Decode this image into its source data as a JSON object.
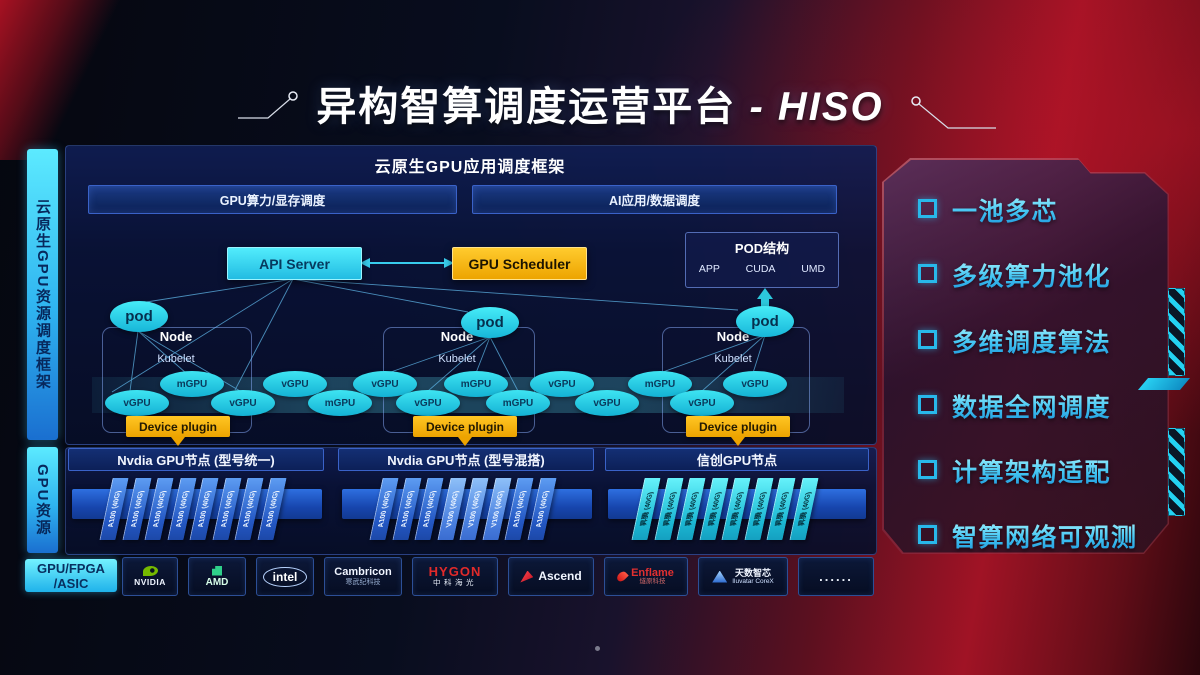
{
  "title": {
    "main": "异构智算调度运营平台",
    "suffix": "- HISO"
  },
  "sidebar": {
    "framework_label": "云原生GPU资源调度框架",
    "gpu_label": "GPU资源"
  },
  "framework": {
    "header": "云原生GPU应用调度框架",
    "bar_left": "GPU算力/显存调度",
    "bar_right": "AI应用/数据调度",
    "api_server": "API Server",
    "gpu_scheduler": "GPU Scheduler",
    "pod_box": {
      "title": "POD结构",
      "items": [
        "APP",
        "CUDA",
        "UMD"
      ]
    },
    "node_label": "Node",
    "kubelet_label": "Kubelet",
    "pod_label": "pod",
    "device_plugin_label": "Device plugin",
    "gpu_units_top": [
      "mGPU",
      "vGPU",
      "vGPU",
      "mGPU",
      "vGPU",
      "mGPU",
      "vGPU"
    ],
    "gpu_units_bottom": [
      "vGPU",
      "vGPU",
      "mGPU",
      "vGPU",
      "mGPU",
      "vGPU",
      "vGPU"
    ]
  },
  "gpu_resources": {
    "groups": [
      {
        "label": "Nvdia GPU节点 (型号统一)",
        "card_style": "blue",
        "cards": [
          "A100 (40G)",
          "A100 (40G)",
          "A100 (40G)",
          "A100 (40G)",
          "A100 (40G)",
          "A100 (40G)",
          "A100 (40G)",
          "A100 (40G)"
        ]
      },
      {
        "label": "Nvdia GPU节点 (型号混搭)",
        "card_style": "blue",
        "cards": [
          "A100 (40G)",
          "A100 (40G)",
          "A100 (40G)",
          "V100 (40G)",
          "V100 (40G)",
          "V100 (40G)",
          "A100 (40G)",
          "A100 (40G)"
        ]
      },
      {
        "label": "信创GPU节点",
        "card_style": "cyan",
        "cards": [
          "昇腾 (40G)",
          "昇腾 (40G)",
          "昇腾 (40G)",
          "昇腾 (40G)",
          "昇腾 (40G)",
          "昇腾 (40G)",
          "昇腾 (40G)",
          "昇腾 (40G)"
        ]
      }
    ]
  },
  "hardware": {
    "category_line1": "GPU/FPGA",
    "category_line2": "/ASIC",
    "vendors": [
      {
        "id": "nvidia",
        "name": "NVIDIA"
      },
      {
        "id": "amd",
        "name": "AMD"
      },
      {
        "id": "intel",
        "name": "intel"
      },
      {
        "id": "cambricon",
        "name": "Cambricon",
        "sub": "寒武纪科技"
      },
      {
        "id": "hygon",
        "name": "HYGON",
        "sub": "中科海光"
      },
      {
        "id": "ascend",
        "name": "Ascend"
      },
      {
        "id": "enflame",
        "name": "Enflame",
        "sub": "燧原科技"
      },
      {
        "id": "iluvatar",
        "name": "天数智芯",
        "sub": "Iluvatar CoreX"
      },
      {
        "id": "more",
        "name": "......"
      }
    ]
  },
  "features": [
    "一池多芯",
    "多级算力池化",
    "多维调度算法",
    "数据全网调度",
    "计算架构适配",
    "智算网络可观测"
  ],
  "colors": {
    "accent_cyan": "#3ae0f6",
    "accent_yellow": "#ffbe0e",
    "accent_red": "#a01325",
    "panel_navy": "#0a1338",
    "nvidia_green": "#76b900",
    "amd_green": "#2fd08a"
  }
}
